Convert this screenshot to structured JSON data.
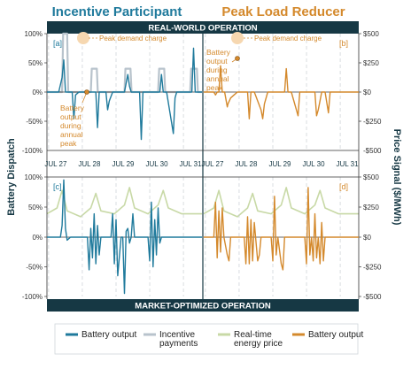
{
  "titles": {
    "left": "Incentive Participant",
    "right": "Peak Load Reducer",
    "top_band": "REAL-WORLD OPERATION",
    "bottom_band": "MARKET-OPTIMIZED OPERATION"
  },
  "axes": {
    "left_label": "Battery Dispatch",
    "right_label": "Price Signal ($/MWh)",
    "left_ticks": [
      "100%",
      "50%",
      "0%",
      "-50%",
      "-100%"
    ],
    "right_ticks": [
      "$500",
      "$250",
      "$0",
      "-$250",
      "-$500"
    ],
    "date_ticks": [
      "JUL 27",
      "JUL 28",
      "JUL 29",
      "JUL 30",
      "JUL 31"
    ]
  },
  "annotations": {
    "peak_demand_charge": "Peak demand charge",
    "battery_output_annual_peak_lines": [
      "Battery",
      "output",
      "during",
      "annual",
      "peak"
    ]
  },
  "panel_labels": {
    "a": "[a]",
    "b": "[b]",
    "c": "[c]",
    "d": "[d]"
  },
  "legend": {
    "items": [
      {
        "label_lines": [
          "Battery output"
        ],
        "color": "#1f7a9c",
        "style": "solid"
      },
      {
        "label_lines": [
          "Incentive",
          "payments"
        ],
        "color": "#b8c3cc",
        "style": "solid"
      },
      {
        "label_lines": [
          "Real-time",
          "energy price"
        ],
        "color": "#c8d9a6",
        "style": "solid"
      },
      {
        "label_lines": [
          "Battery output"
        ],
        "color": "#d4892c",
        "style": "solid"
      }
    ]
  },
  "colors": {
    "teal": "#1f7a9c",
    "orange": "#d4892c",
    "gray": "#b8c3cc",
    "green": "#c8d9a6",
    "dark_band": "#163844",
    "annotation_orange": "#d4892c",
    "peak_highlight": "#f6d7b0"
  },
  "chart_data": [
    {
      "type": "line",
      "panel": "a",
      "x_unit": "days (Jul 27 – Jul 31)",
      "ylim": [
        -100,
        100
      ],
      "series": [
        {
          "role": "dispatch",
          "x": [
            0,
            0.35,
            0.45,
            0.5,
            0.55,
            0.65,
            0.75,
            0.8,
            0.85,
            0.95,
            1.35,
            1.45,
            1.5,
            1.55,
            1.65,
            1.75,
            1.8,
            1.85,
            1.95,
            2.3,
            2.4,
            2.45,
            2.5,
            2.6,
            2.75,
            2.8,
            2.85,
            2.95,
            3.25,
            3.35,
            3.4,
            3.45,
            3.55,
            3.75,
            3.8,
            3.85,
            3.95,
            4.2,
            4.3,
            4.35,
            4.4,
            4.5,
            4.55,
            4.6
          ],
          "y": [
            0,
            0,
            25,
            55,
            0,
            0,
            0,
            -45,
            -5,
            0,
            0,
            0,
            -60,
            0,
            0,
            0,
            -30,
            -15,
            0,
            0,
            30,
            10,
            0,
            0,
            0,
            -80,
            0,
            0,
            0,
            0,
            30,
            0,
            0,
            -70,
            -10,
            0,
            0,
            0,
            0,
            75,
            0,
            0,
            0,
            0
          ]
        },
        {
          "role": "incentive",
          "x": [
            0,
            0.45,
            0.48,
            0.6,
            0.63,
            1.3,
            1.33,
            1.48,
            1.51,
            2.3,
            2.33,
            2.48,
            2.51,
            3.3,
            3.33,
            3.48,
            3.51,
            4.25,
            4.28,
            4.45,
            4.48,
            4.6
          ],
          "y": [
            0,
            0,
            100,
            100,
            0,
            0,
            40,
            40,
            0,
            0,
            40,
            40,
            0,
            0,
            40,
            40,
            0,
            0,
            40,
            40,
            0,
            0
          ]
        }
      ]
    },
    {
      "type": "line",
      "panel": "b",
      "x_unit": "days (Jul 27 – Jul 31)",
      "ylim": [
        -100,
        100
      ],
      "series": [
        {
          "role": "dispatch",
          "x": [
            0,
            0.3,
            0.35,
            0.4,
            0.45,
            0.5,
            0.55,
            0.62,
            0.7,
            0.72,
            0.8,
            0.9,
            1.0,
            1.3,
            1.35,
            1.4,
            1.45,
            1.5,
            1.7,
            1.75,
            1.8,
            1.9,
            2.0,
            2.4,
            2.45,
            2.5,
            2.55,
            2.6,
            2.75,
            2.8,
            2.85,
            3.0,
            3.2,
            3.3,
            3.35,
            3.4,
            3.5,
            3.55,
            3.6,
            3.7,
            3.75,
            4.0,
            4.6
          ],
          "y": [
            0,
            0,
            -5,
            0,
            0,
            45,
            0,
            0,
            -25,
            -20,
            -10,
            -5,
            0,
            0,
            -45,
            0,
            0,
            0,
            -30,
            -45,
            -20,
            0,
            0,
            0,
            40,
            0,
            0,
            0,
            -30,
            -40,
            0,
            0,
            0,
            0,
            -40,
            -30,
            0,
            0,
            0,
            -35,
            0,
            0,
            0
          ]
        }
      ]
    },
    {
      "type": "line",
      "panel": "c",
      "x_unit": "days (Jul 27 – Jul 31)",
      "ylim": [
        -100,
        100
      ],
      "series": [
        {
          "role": "dispatch",
          "x": [
            0,
            0.4,
            0.45,
            0.5,
            0.55,
            0.6,
            0.7,
            0.8,
            1.2,
            1.25,
            1.3,
            1.35,
            1.4,
            1.45,
            1.5,
            1.55,
            1.6,
            1.7,
            1.9,
            1.95,
            2.0,
            2.05,
            2.1,
            2.2,
            2.25,
            2.3,
            2.35,
            2.4,
            2.45,
            2.5,
            2.55,
            2.6,
            3.0,
            3.05,
            3.1,
            3.15,
            3.2,
            3.25,
            3.3,
            3.35,
            3.4,
            3.5,
            4.6
          ],
          "y": [
            0,
            0,
            20,
            98,
            15,
            -5,
            0,
            0,
            0,
            -55,
            15,
            -35,
            40,
            -45,
            20,
            -30,
            0,
            0,
            0,
            40,
            -45,
            30,
            -65,
            0,
            0,
            -95,
            10,
            15,
            -10,
            0,
            40,
            0,
            0,
            -40,
            60,
            -50,
            30,
            -30,
            50,
            -10,
            0,
            0,
            0
          ]
        },
        {
          "role": "price",
          "x": [
            0,
            0.3,
            0.45,
            0.6,
            1.0,
            1.3,
            1.45,
            1.6,
            2.0,
            2.3,
            2.45,
            2.6,
            3.0,
            3.3,
            3.45,
            3.6,
            4.0,
            4.6
          ],
          "y": [
            40,
            50,
            80,
            45,
            35,
            50,
            75,
            45,
            40,
            55,
            85,
            50,
            40,
            55,
            80,
            50,
            40,
            40
          ]
        }
      ]
    },
    {
      "type": "line",
      "panel": "d",
      "x_unit": "days (Jul 27 – Jul 31)",
      "ylim": [
        -100,
        100
      ],
      "series": [
        {
          "role": "dispatch",
          "x": [
            0,
            0.3,
            0.35,
            0.4,
            0.45,
            0.5,
            0.55,
            0.6,
            0.7,
            0.75,
            0.8,
            1.2,
            1.25,
            1.3,
            1.35,
            1.4,
            1.45,
            1.5,
            1.6,
            1.65,
            1.7,
            1.8,
            2.0,
            2.05,
            2.1,
            2.15,
            2.2,
            2.3,
            2.35,
            2.4,
            2.5,
            3.0,
            3.05,
            3.1,
            3.15,
            3.2,
            3.25,
            3.3,
            3.35,
            3.4,
            3.45,
            3.5,
            3.55,
            3.6,
            4.6
          ],
          "y": [
            0,
            0,
            60,
            -35,
            45,
            -25,
            50,
            0,
            -30,
            -40,
            0,
            0,
            -45,
            35,
            -45,
            30,
            -40,
            25,
            -40,
            -30,
            0,
            0,
            0,
            -40,
            70,
            -30,
            0,
            -45,
            -55,
            0,
            0,
            0,
            -45,
            85,
            -30,
            0,
            -40,
            40,
            -35,
            0,
            -45,
            25,
            -40,
            0,
            0
          ]
        },
        {
          "role": "price",
          "x": [
            0,
            0.3,
            0.45,
            0.6,
            1.0,
            1.3,
            1.45,
            1.6,
            2.0,
            2.3,
            2.45,
            2.6,
            3.0,
            3.3,
            3.45,
            3.6,
            4.0,
            4.6
          ],
          "y": [
            40,
            50,
            80,
            45,
            35,
            50,
            75,
            45,
            40,
            55,
            85,
            50,
            40,
            55,
            80,
            50,
            40,
            40
          ]
        }
      ]
    }
  ]
}
